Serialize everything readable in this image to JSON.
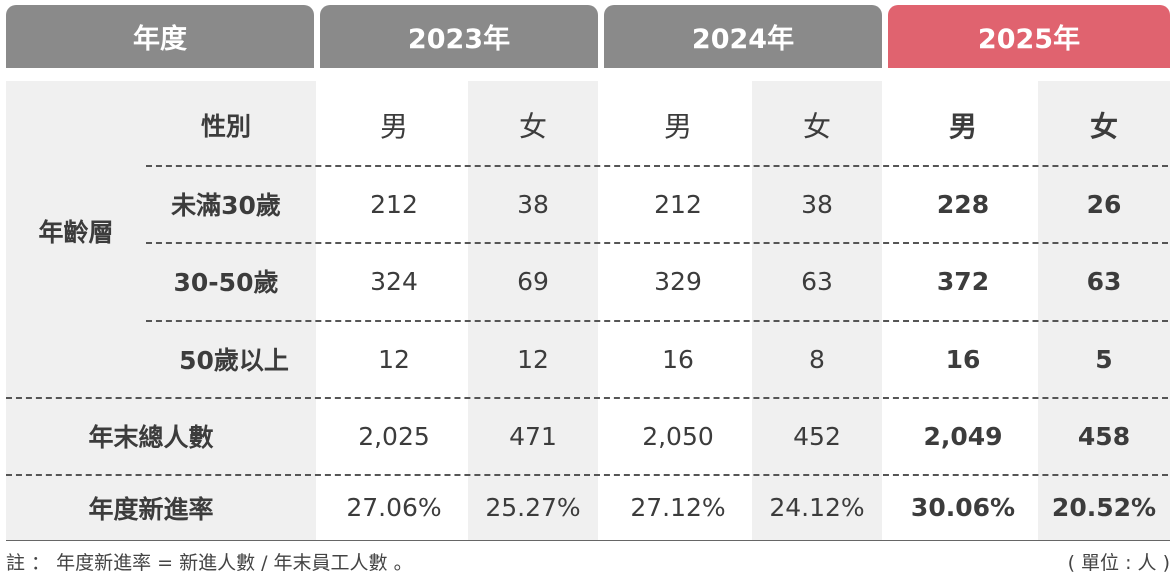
{
  "header": {
    "year_label": "年度",
    "years": [
      "2023年",
      "2024年",
      "2025年"
    ]
  },
  "labels": {
    "gender": "性別",
    "age_group": "年齡層",
    "age_rows": [
      "未滿30歲",
      "30-50歲",
      "50歲以上"
    ],
    "total": "年末總人數",
    "new_rate": "年度新進率"
  },
  "genders": [
    "男",
    "女",
    "男",
    "女",
    "男",
    "女"
  ],
  "rows": {
    "under30": [
      "212",
      "38",
      "212",
      "38",
      "228",
      "26"
    ],
    "age30_50": [
      "324",
      "69",
      "329",
      "63",
      "372",
      "63"
    ],
    "over50": [
      "12",
      "12",
      "16",
      "8",
      "16",
      "5"
    ],
    "total": [
      "2,025",
      "471",
      "2,050",
      "452",
      "2,049",
      "458"
    ],
    "new_rate": [
      "27.06%",
      "25.27%",
      "27.12%",
      "24.12%",
      "30.06%",
      "20.52%"
    ]
  },
  "footnote": {
    "note": "註 ： 年度新進率 = 新進人數 / 年末員工人數 。",
    "unit": "( 單位 : 人 )"
  },
  "colors": {
    "header_gray": "#8a8a8a",
    "header_highlight": "#e0636f",
    "shade": "#f0f0f0"
  }
}
